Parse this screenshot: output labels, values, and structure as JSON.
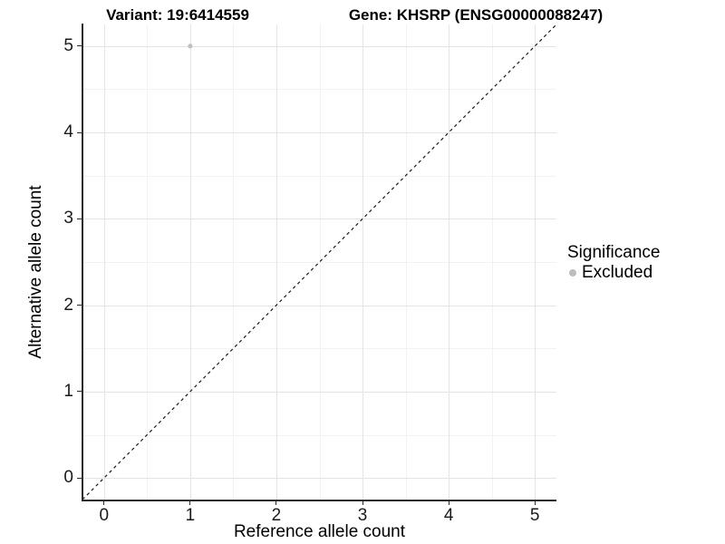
{
  "chart_data": {
    "type": "scatter",
    "title_parts": [
      "Variant: 19:6414559",
      "Gene: KHSRP (ENSG00000088247)"
    ],
    "xlabel": "Reference allele count",
    "ylabel": "Alternative allele count",
    "xlim": [
      -0.25,
      5.25
    ],
    "ylim": [
      -0.25,
      5.25
    ],
    "xticks": [
      0,
      1,
      2,
      3,
      4,
      5
    ],
    "yticks": [
      0,
      1,
      2,
      3,
      4,
      5
    ],
    "grid": {
      "major": true,
      "minor": true
    },
    "points": [
      {
        "x": 1,
        "y": 5,
        "series": "Excluded"
      }
    ],
    "reference_line": {
      "kind": "identity",
      "slope": 1,
      "intercept": 0,
      "style": "dashed",
      "color": "#1a1a1a"
    },
    "legend": {
      "title": "Significance",
      "position": "right",
      "items": [
        {
          "label": "Excluded",
          "color": "#bdbdbd",
          "marker": "circle"
        }
      ]
    },
    "colors": {
      "point": "#c0c0c0",
      "grid_major": "#e4e4e4",
      "grid_minor": "#f2f2f2",
      "axis": "#2b2b2b",
      "text": "#000000"
    }
  }
}
